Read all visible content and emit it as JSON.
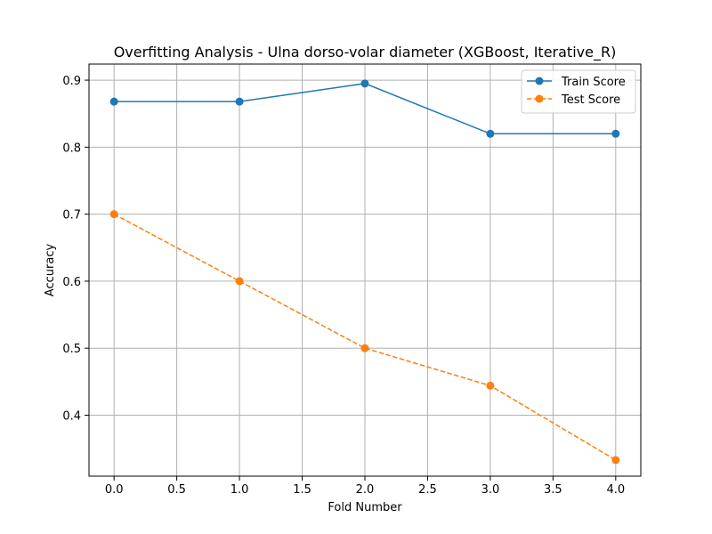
{
  "chart_data": {
    "type": "line",
    "title": "Overfitting Analysis - Ulna dorso-volar diameter (XGBoost, Iterative_R)",
    "xlabel": "Fold Number",
    "ylabel": "Accuracy",
    "x": [
      0,
      1,
      2,
      3,
      4
    ],
    "xlim": [
      -0.2,
      4.2
    ],
    "ylim": [
      0.309,
      0.924
    ],
    "xticks": [
      0.0,
      0.5,
      1.0,
      1.5,
      2.0,
      2.5,
      3.0,
      3.5,
      4.0
    ],
    "yticks": [
      0.4,
      0.5,
      0.6,
      0.7,
      0.8,
      0.9
    ],
    "grid": true,
    "legend_position": "top-right",
    "series": [
      {
        "name": "Train Score",
        "values": [
          0.868,
          0.868,
          0.895,
          0.82,
          0.82
        ],
        "color": "#1f77b4",
        "line_style": "solid",
        "marker": "circle"
      },
      {
        "name": "Test Score",
        "values": [
          0.7,
          0.6,
          0.5,
          0.444,
          0.333
        ],
        "color": "#ff7f0e",
        "line_style": "dashed",
        "marker": "circle"
      }
    ]
  }
}
